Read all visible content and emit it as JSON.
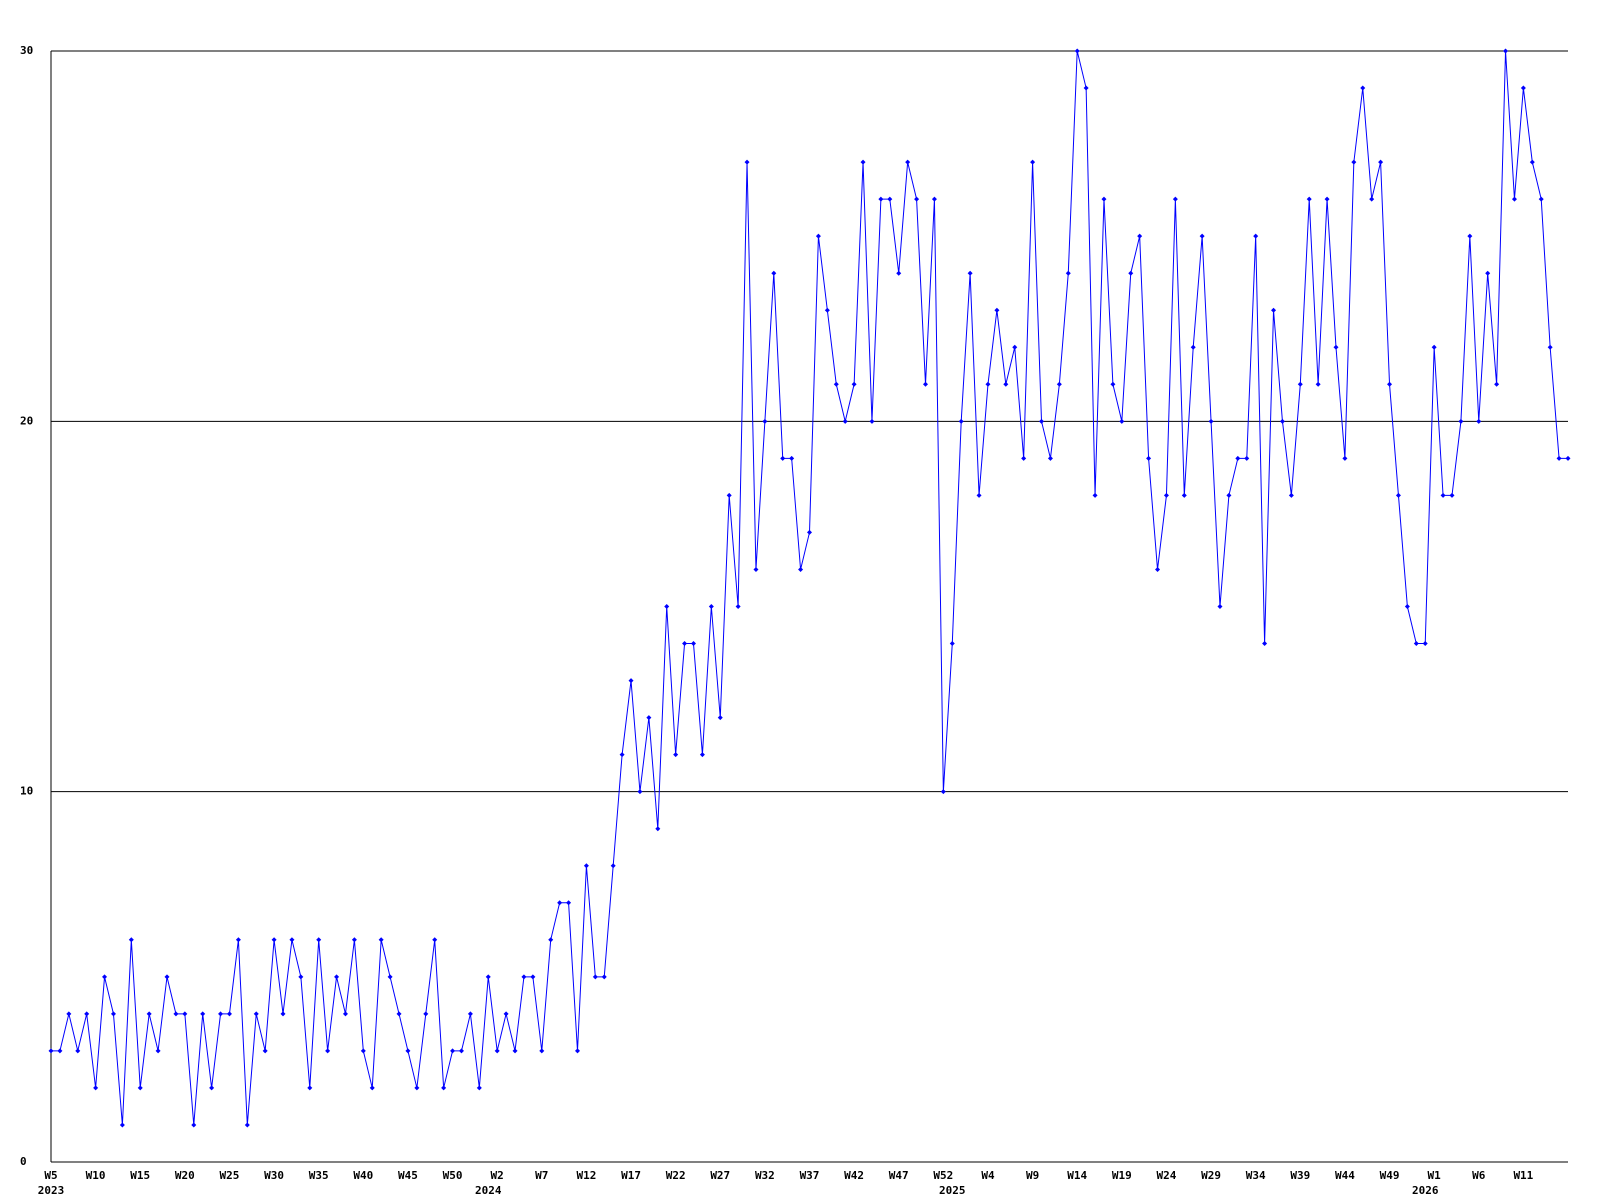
{
  "chart_data": {
    "type": "line",
    "categories": [
      "W5",
      null,
      null,
      null,
      null,
      "W10",
      null,
      null,
      null,
      null,
      "W15",
      null,
      null,
      null,
      null,
      "W20",
      null,
      null,
      null,
      null,
      "W25",
      null,
      null,
      null,
      null,
      "W30",
      null,
      null,
      null,
      null,
      "W35",
      null,
      null,
      null,
      null,
      "W40",
      null,
      null,
      null,
      null,
      "W45",
      null,
      null,
      null,
      null,
      "W50",
      null,
      null,
      null,
      null,
      "W2",
      null,
      null,
      null,
      null,
      "W7",
      null,
      null,
      null,
      null,
      "W12",
      null,
      null,
      null,
      null,
      "W17",
      null,
      null,
      null,
      null,
      "W22",
      null,
      null,
      null,
      null,
      "W27",
      null,
      null,
      null,
      null,
      "W32",
      null,
      null,
      null,
      null,
      "W37",
      null,
      null,
      null,
      null,
      "W42",
      null,
      null,
      null,
      null,
      "W47",
      null,
      null,
      null,
      null,
      "W52",
      null,
      null,
      null,
      null,
      "W4",
      null,
      null,
      null,
      null,
      "W9",
      null,
      null,
      null,
      null,
      "W14",
      null,
      null,
      null,
      null,
      "W19",
      null,
      null,
      null,
      null,
      "W24",
      null,
      null,
      null,
      null,
      "W29",
      null,
      null,
      null,
      null,
      "W34",
      null,
      null,
      null,
      null,
      "W39",
      null,
      null,
      null,
      null,
      "W44",
      null,
      null,
      null,
      null,
      "W49",
      null,
      null,
      null,
      null,
      "W1",
      null,
      null,
      null,
      null,
      "W6",
      null,
      null,
      null,
      null,
      "W11",
      null,
      null,
      null,
      null,
      null
    ],
    "years": [
      "2023",
      null,
      null,
      null,
      null,
      null,
      null,
      null,
      null,
      null,
      null,
      null,
      null,
      null,
      null,
      null,
      null,
      null,
      null,
      null,
      null,
      null,
      null,
      null,
      null,
      null,
      null,
      null,
      null,
      null,
      null,
      null,
      null,
      null,
      null,
      null,
      null,
      null,
      null,
      null,
      null,
      null,
      null,
      null,
      null,
      null,
      null,
      null,
      null,
      "2024",
      null,
      null,
      null,
      null,
      null,
      null,
      null,
      null,
      null,
      null,
      null,
      null,
      null,
      null,
      null,
      null,
      null,
      null,
      null,
      null,
      null,
      null,
      null,
      null,
      null,
      null,
      null,
      null,
      null,
      null,
      null,
      null,
      null,
      null,
      null,
      null,
      null,
      null,
      null,
      null,
      null,
      null,
      null,
      null,
      null,
      null,
      null,
      null,
      null,
      null,
      null,
      "2025",
      null,
      null,
      null,
      null,
      null,
      null,
      null,
      null,
      null,
      null,
      null,
      null,
      null,
      null,
      null,
      null,
      null,
      null,
      null,
      null,
      null,
      null,
      null,
      null,
      null,
      null,
      null,
      null,
      null,
      null,
      null,
      null,
      null,
      null,
      null,
      null,
      null,
      null,
      null,
      null,
      null,
      null,
      null,
      null,
      null,
      null,
      null,
      null,
      null,
      null,
      null,
      null,
      "2026",
      null,
      null,
      null,
      null,
      null,
      null,
      null,
      null,
      null,
      null,
      null,
      null,
      null,
      null,
      null
    ],
    "series": [
      {
        "color": "#0000ff",
        "values": [
          3,
          3,
          4,
          3,
          4,
          2,
          5,
          4,
          1,
          6,
          2,
          4,
          3,
          5,
          4,
          4,
          1,
          4,
          2,
          4,
          4,
          6,
          1,
          4,
          3,
          6,
          4,
          6,
          5,
          2,
          6,
          3,
          5,
          4,
          6,
          3,
          2,
          6,
          5,
          4,
          3,
          2,
          4,
          6,
          2,
          3,
          3,
          4,
          2,
          5,
          3,
          4,
          3,
          5,
          5,
          3,
          6,
          7,
          7,
          3,
          8,
          5,
          5,
          8,
          11,
          13,
          10,
          12,
          9,
          15,
          11,
          14,
          14,
          11,
          15,
          12,
          18,
          15,
          27,
          16,
          20,
          24,
          19,
          19,
          16,
          17,
          25,
          23,
          21,
          20,
          21,
          27,
          20,
          26,
          26,
          24,
          27,
          26,
          21,
          26,
          10,
          14,
          20,
          24,
          18,
          21,
          23,
          21,
          22,
          19,
          27,
          20,
          19,
          21,
          24,
          30,
          29,
          18,
          26,
          21,
          20,
          24,
          25,
          19,
          16,
          18,
          26,
          18,
          22,
          25,
          20,
          15,
          18,
          19,
          19,
          25,
          14,
          23,
          20,
          18,
          21,
          26,
          21,
          26,
          22,
          19,
          27,
          29,
          26,
          27,
          21,
          18,
          15,
          14,
          14,
          22,
          18,
          18,
          20,
          25,
          20,
          24,
          21,
          30,
          26,
          29,
          27,
          26,
          22,
          19,
          19
        ]
      }
    ],
    "ylim": [
      0,
      30
    ],
    "yticks": [
      0,
      10,
      20,
      30
    ],
    "grid": true
  }
}
